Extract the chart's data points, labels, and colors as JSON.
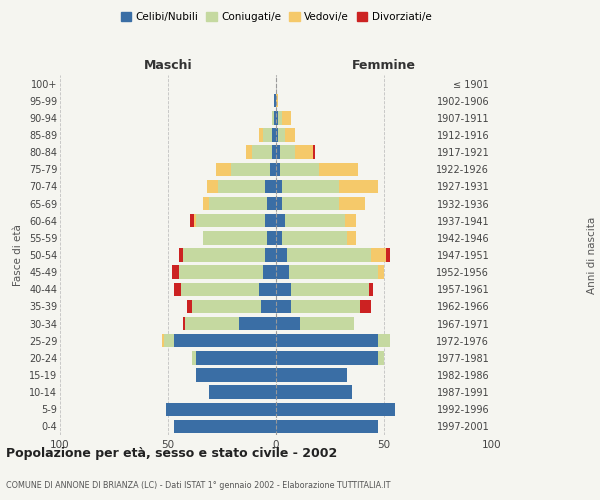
{
  "age_groups": [
    "0-4",
    "5-9",
    "10-14",
    "15-19",
    "20-24",
    "25-29",
    "30-34",
    "35-39",
    "40-44",
    "45-49",
    "50-54",
    "55-59",
    "60-64",
    "65-69",
    "70-74",
    "75-79",
    "80-84",
    "85-89",
    "90-94",
    "95-99",
    "100+"
  ],
  "birth_years": [
    "1997-2001",
    "1992-1996",
    "1987-1991",
    "1982-1986",
    "1977-1981",
    "1972-1976",
    "1967-1971",
    "1962-1966",
    "1957-1961",
    "1952-1956",
    "1947-1951",
    "1942-1946",
    "1937-1941",
    "1932-1936",
    "1927-1931",
    "1922-1926",
    "1917-1921",
    "1912-1916",
    "1907-1911",
    "1902-1906",
    "≤ 1901"
  ],
  "males": {
    "celibi": [
      47,
      51,
      31,
      37,
      37,
      47,
      17,
      7,
      8,
      6,
      5,
      4,
      5,
      4,
      5,
      3,
      2,
      2,
      1,
      1,
      0
    ],
    "coniugati": [
      0,
      0,
      0,
      0,
      2,
      5,
      25,
      32,
      36,
      39,
      38,
      30,
      32,
      27,
      22,
      18,
      9,
      4,
      1,
      0,
      0
    ],
    "vedovi": [
      0,
      0,
      0,
      0,
      0,
      1,
      0,
      0,
      0,
      0,
      0,
      0,
      1,
      3,
      5,
      7,
      3,
      2,
      0,
      0,
      0
    ],
    "divorziati": [
      0,
      0,
      0,
      0,
      0,
      0,
      1,
      2,
      3,
      3,
      2,
      0,
      2,
      0,
      0,
      0,
      0,
      0,
      0,
      0,
      0
    ]
  },
  "females": {
    "nubili": [
      47,
      55,
      35,
      33,
      47,
      47,
      11,
      7,
      7,
      6,
      5,
      3,
      4,
      3,
      3,
      2,
      2,
      1,
      1,
      0,
      0
    ],
    "coniugate": [
      0,
      0,
      0,
      0,
      3,
      6,
      25,
      32,
      36,
      41,
      39,
      30,
      28,
      26,
      26,
      18,
      7,
      3,
      2,
      0,
      0
    ],
    "vedove": [
      0,
      0,
      0,
      0,
      0,
      0,
      0,
      0,
      0,
      3,
      7,
      4,
      5,
      12,
      18,
      18,
      8,
      5,
      4,
      1,
      0
    ],
    "divorziate": [
      0,
      0,
      0,
      0,
      0,
      0,
      0,
      5,
      2,
      0,
      2,
      0,
      0,
      0,
      0,
      0,
      1,
      0,
      0,
      0,
      0
    ]
  },
  "colors": {
    "celibi": "#3a6ea5",
    "coniugati": "#c5d9a0",
    "vedovi": "#f5c96a",
    "divorziati": "#cc2222"
  },
  "xlim": 100,
  "title": "Popolazione per età, sesso e stato civile - 2002",
  "subtitle": "COMUNE DI ANNONE DI BRIANZA (LC) - Dati ISTAT 1° gennaio 2002 - Elaborazione TUTTITALIA.IT",
  "ylabel_left": "Fasce di età",
  "ylabel_right": "Anni di nascita",
  "xlabel_left": "Maschi",
  "xlabel_right": "Femmine",
  "legend_labels": [
    "Celibi/Nubili",
    "Coniugati/e",
    "Vedovi/e",
    "Divorziati/e"
  ],
  "bg_color": "#f5f5f0",
  "grid_color": "#bbbbbb"
}
